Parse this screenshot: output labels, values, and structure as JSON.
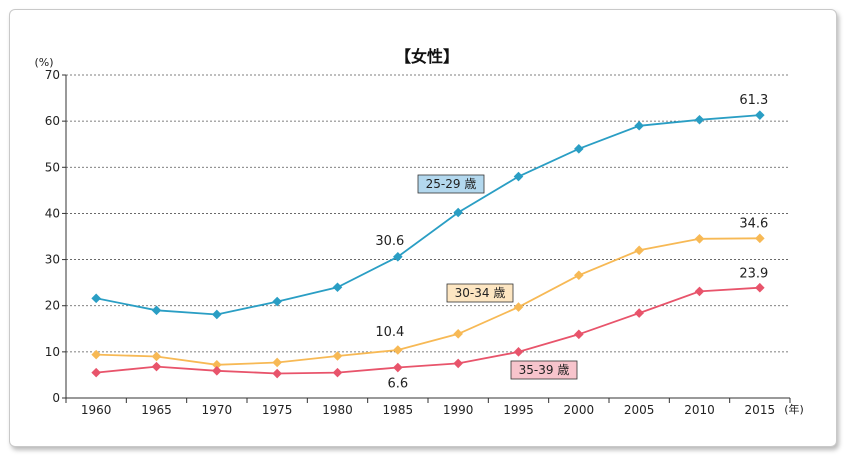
{
  "chart_data": {
    "type": "line",
    "title": "【女性】",
    "y_unit": "(%)",
    "x_unit": "(年)",
    "ylim": [
      0,
      70
    ],
    "y_ticks": [
      0,
      10,
      20,
      30,
      40,
      50,
      60,
      70
    ],
    "grid": "horizontal dashed",
    "x": [
      1960,
      1965,
      1970,
      1975,
      1980,
      1985,
      1990,
      1995,
      2000,
      2005,
      2010,
      2015
    ],
    "series": [
      {
        "name": "25-29 歳",
        "color": "#2a9ec4",
        "label_box_color": "#b3d8ee",
        "values": [
          21.6,
          19.0,
          18.1,
          20.9,
          24.0,
          30.6,
          40.2,
          48.0,
          54.0,
          59.0,
          60.3,
          61.3
        ]
      },
      {
        "name": "30-34 歳",
        "color": "#f7b955",
        "label_box_color": "#fde6c2",
        "values": [
          9.4,
          9.0,
          7.2,
          7.7,
          9.1,
          10.4,
          13.9,
          19.7,
          26.6,
          32.0,
          34.5,
          34.6
        ]
      },
      {
        "name": "35-39 歳",
        "color": "#e8546b",
        "label_box_color": "#f7c4cc",
        "values": [
          5.5,
          6.8,
          5.9,
          5.3,
          5.5,
          6.6,
          7.5,
          10.0,
          13.8,
          18.4,
          23.1,
          23.9
        ]
      }
    ],
    "annotations": [
      {
        "series": 0,
        "index": 5,
        "text": "30.6"
      },
      {
        "series": 0,
        "index": 11,
        "text": "61.3"
      },
      {
        "series": 1,
        "index": 5,
        "text": "10.4"
      },
      {
        "series": 1,
        "index": 11,
        "text": "34.6"
      },
      {
        "series": 2,
        "index": 5,
        "text": "6.6"
      },
      {
        "series": 2,
        "index": 11,
        "text": "23.9"
      }
    ]
  }
}
